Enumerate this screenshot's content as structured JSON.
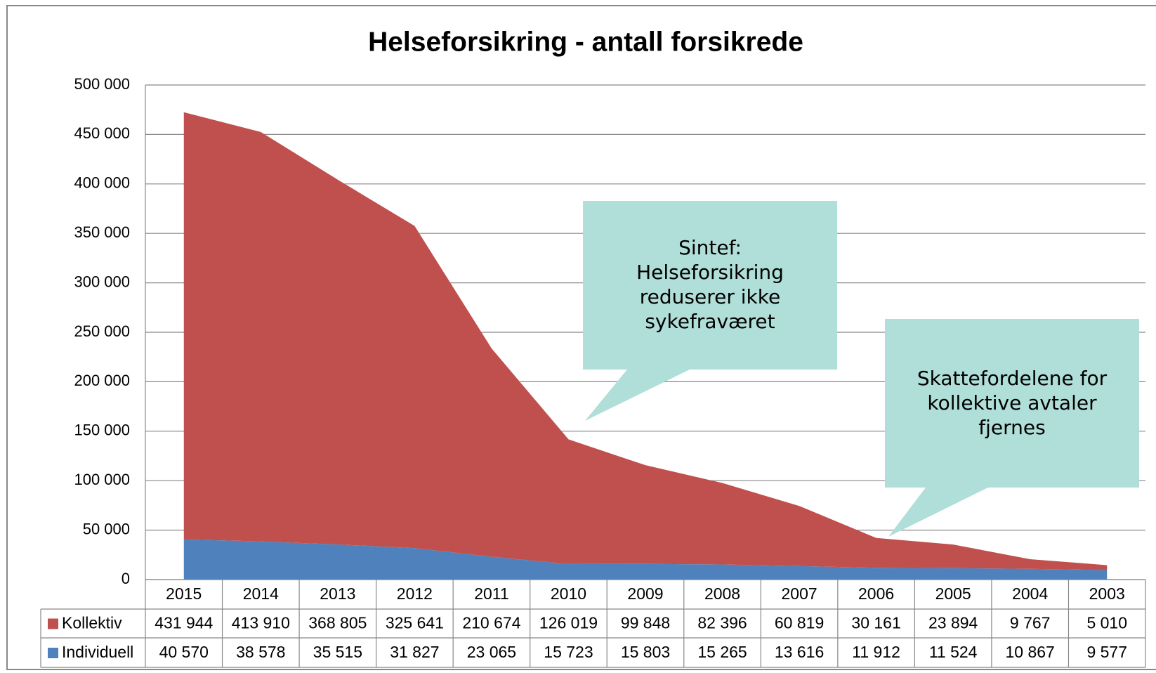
{
  "chart_data": {
    "type": "stacked-area",
    "title": "Helseforsikring - antall forsikrede",
    "categories": [
      "2015",
      "2014",
      "2013",
      "2012",
      "2011",
      "2010",
      "2009",
      "2008",
      "2007",
      "2006",
      "2005",
      "2004",
      "2003"
    ],
    "series": [
      {
        "name": "Kollektiv",
        "color": "#c0504d",
        "values": [
          431944,
          413910,
          368805,
          325641,
          210674,
          126019,
          99848,
          82396,
          60819,
          30161,
          23894,
          9767,
          5010
        ],
        "value_labels": [
          "431 944",
          "413 910",
          "368 805",
          "325 641",
          "210 674",
          "126 019",
          "99 848",
          "82 396",
          "60 819",
          "30 161",
          "23 894",
          "9 767",
          "5 010"
        ]
      },
      {
        "name": "Individuell",
        "color": "#4f81bd",
        "values": [
          40570,
          38578,
          35515,
          31827,
          23065,
          15723,
          15803,
          15265,
          13616,
          11912,
          11524,
          10867,
          9577
        ],
        "value_labels": [
          "40 570",
          "38 578",
          "35 515",
          "31 827",
          "23 065",
          "15 723",
          "15 803",
          "15 265",
          "13 616",
          "11 912",
          "11 524",
          "10 867",
          "9 577"
        ]
      }
    ],
    "ylim": [
      0,
      500000
    ],
    "yticks": [
      0,
      {
        "value": 50000,
        "label": "50 000"
      },
      {
        "value": 100000,
        "label": "100 000"
      },
      {
        "value": 150000,
        "label": "150 000"
      },
      {
        "value": 200000,
        "label": "200 000"
      },
      {
        "value": 250000,
        "label": "250 000"
      },
      {
        "value": 300000,
        "label": "300 000"
      },
      {
        "value": 350000,
        "label": "350 000"
      },
      {
        "value": 400000,
        "label": "400 000"
      },
      {
        "value": 450000,
        "label": "450 000"
      },
      {
        "value": 500000,
        "label": "500 000"
      }
    ],
    "grid": true,
    "annotations": [
      {
        "lines": [
          "Sintef:",
          "Helseforsikring",
          "reduserer ikke",
          "sykefraværet"
        ],
        "fill": "#b0ded9"
      },
      {
        "lines": [
          "Skattefordelene for",
          "kollektive avtaler",
          "fjernes"
        ],
        "fill": "#b0ded9"
      }
    ]
  }
}
